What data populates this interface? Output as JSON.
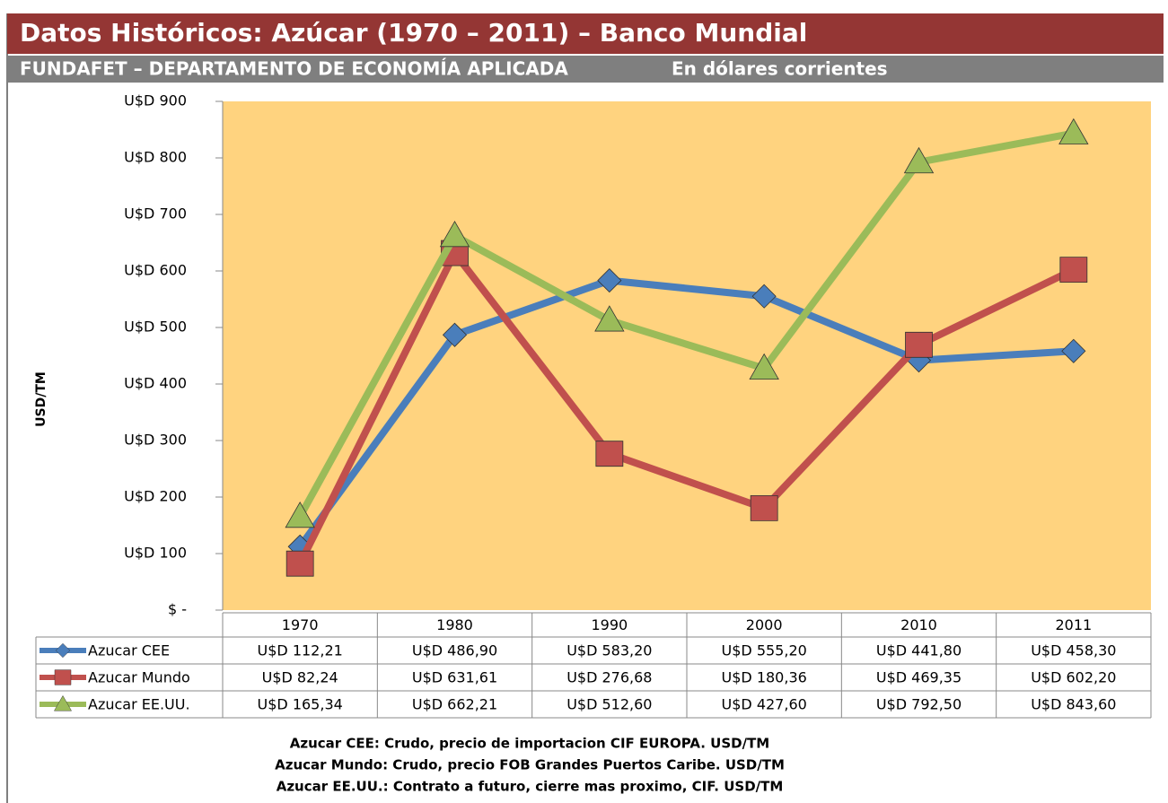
{
  "title": "Datos Históricos: Azúcar (1970 – 2011) – Banco Mundial",
  "subtitle": "FUNDAFET – DEPARTAMENTO DE ECONOMÍA APLICADA",
  "subtitle_note": "En dólares corrientes",
  "chart_data": {
    "type": "line",
    "ylabel": "USD/TM",
    "categories": [
      "1970",
      "1980",
      "1990",
      "2000",
      "2010",
      "2011"
    ],
    "ylim": [
      0,
      900
    ],
    "yticks": [
      {
        "value": 0,
        "label": "$ -"
      },
      {
        "value": 100,
        "label": "U$D 100"
      },
      {
        "value": 200,
        "label": "U$D 200"
      },
      {
        "value": 300,
        "label": "U$D 300"
      },
      {
        "value": 400,
        "label": "U$D 400"
      },
      {
        "value": 500,
        "label": "U$D 500"
      },
      {
        "value": 600,
        "label": "U$D 600"
      },
      {
        "value": 700,
        "label": "U$D 700"
      },
      {
        "value": 800,
        "label": "U$D 800"
      },
      {
        "value": 900,
        "label": "U$D 900"
      }
    ],
    "series": [
      {
        "name": "Azucar CEE",
        "color": "#4a7ebb",
        "marker": "diamond",
        "values": [
          112.21,
          486.9,
          583.2,
          555.2,
          441.8,
          458.3
        ],
        "value_labels": [
          "U$D 112,21",
          "U$D 486,90",
          "U$D 583,20",
          "U$D 555,20",
          "U$D 441,80",
          "U$D 458,30"
        ]
      },
      {
        "name": "Azucar Mundo",
        "color": "#c0504d",
        "marker": "square",
        "values": [
          82.24,
          631.61,
          276.68,
          180.36,
          469.35,
          602.2
        ],
        "value_labels": [
          "U$D 82,24",
          "U$D 631,61",
          "U$D 276,68",
          "U$D 180,36",
          "U$D 469,35",
          "U$D 602,20"
        ]
      },
      {
        "name": "Azucar EE.UU.",
        "color": "#9bbb59",
        "marker": "triangle",
        "values": [
          165.34,
          662.21,
          512.6,
          427.6,
          792.5,
          843.6
        ],
        "value_labels": [
          "U$D 165,34",
          "U$D 662,21",
          "U$D 512,60",
          "U$D 427,60",
          "U$D 792,50",
          "U$D 843,60"
        ]
      }
    ]
  },
  "notes": [
    "Azucar CEE: Crudo, precio de importacion CIF EUROPA. USD/TM",
    "Azucar Mundo: Crudo, precio FOB Grandes Puertos Caribe. USD/TM",
    "Azucar EE.UU.: Contrato a futuro, cierre mas proximo, CIF.  USD/TM"
  ]
}
